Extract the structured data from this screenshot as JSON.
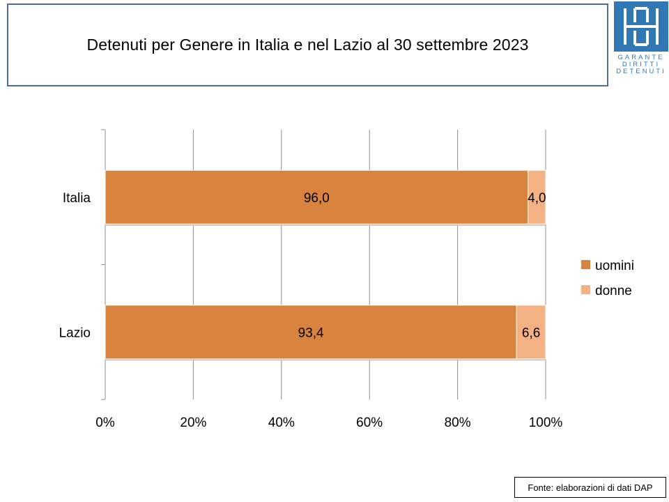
{
  "title": "Detenuti per Genere in Italia e nel Lazio al 30 settembre 2023",
  "logo": {
    "lines": [
      "GARANTE",
      "DIRITTI",
      "DETENUTI"
    ],
    "color": "#2f78b4"
  },
  "source": "Fonte: elaborazioni di dati DAP",
  "chart_data": {
    "type": "bar",
    "orientation": "horizontal",
    "stacked": "percent",
    "categories": [
      "Italia",
      "Lazio"
    ],
    "series": [
      {
        "name": "uomini",
        "values": [
          96.0,
          93.4
        ],
        "labels": [
          "96,0",
          "93,4"
        ],
        "color": "#d9843e"
      },
      {
        "name": "donne",
        "values": [
          4.0,
          6.6
        ],
        "labels": [
          "4,0",
          "6,6"
        ],
        "color": "#f4b183"
      }
    ],
    "x_ticks": [
      "0%",
      "20%",
      "40%",
      "60%",
      "80%",
      "100%"
    ],
    "xlim": [
      0,
      100
    ],
    "grid": true,
    "legend_position": "right"
  }
}
